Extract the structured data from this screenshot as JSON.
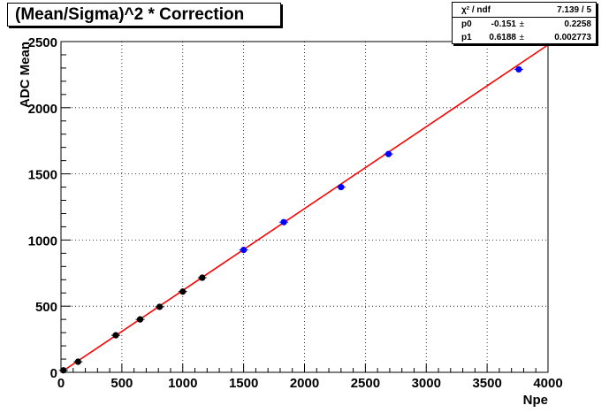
{
  "chart_data": {
    "type": "scatter",
    "title": "(Mean/Sigma)^2 * Correction",
    "xlabel": "Npe",
    "ylabel": "ADC Mean",
    "xlim": [
      0,
      4000
    ],
    "ylim": [
      0,
      2500
    ],
    "xticks": [
      "0",
      "500",
      "1000",
      "1500",
      "2000",
      "2500",
      "3000",
      "3500",
      "4000"
    ],
    "yticks": [
      "0",
      "500",
      "1000",
      "1500",
      "2000",
      "2500"
    ],
    "grid": true,
    "series": [
      {
        "color": "#000000",
        "points": [
          {
            "x": 20,
            "y": 15
          },
          {
            "x": 140,
            "y": 80
          },
          {
            "x": 450,
            "y": 280
          },
          {
            "x": 650,
            "y": 400
          },
          {
            "x": 810,
            "y": 495
          },
          {
            "x": 1000,
            "y": 610
          },
          {
            "x": 1160,
            "y": 715
          }
        ]
      },
      {
        "color": "#0000ff",
        "points": [
          {
            "x": 1500,
            "y": 925
          },
          {
            "x": 1830,
            "y": 1135
          },
          {
            "x": 2300,
            "y": 1400
          },
          {
            "x": 2690,
            "y": 1650
          },
          {
            "x": 3760,
            "y": 2290
          }
        ]
      }
    ],
    "fit": {
      "color": "#ff0000",
      "p0": -0.151,
      "p1": 0.6188
    },
    "stats": {
      "chi2_label": "χ² / ndf",
      "chi2_value": "7.139 / 5",
      "p0_label": "p0",
      "p0_value": "-0.151",
      "p0_error": "0.2258",
      "p1_label": "p1",
      "p1_value": "0.6188",
      "p1_error": "0.002773",
      "pm": "±"
    }
  }
}
